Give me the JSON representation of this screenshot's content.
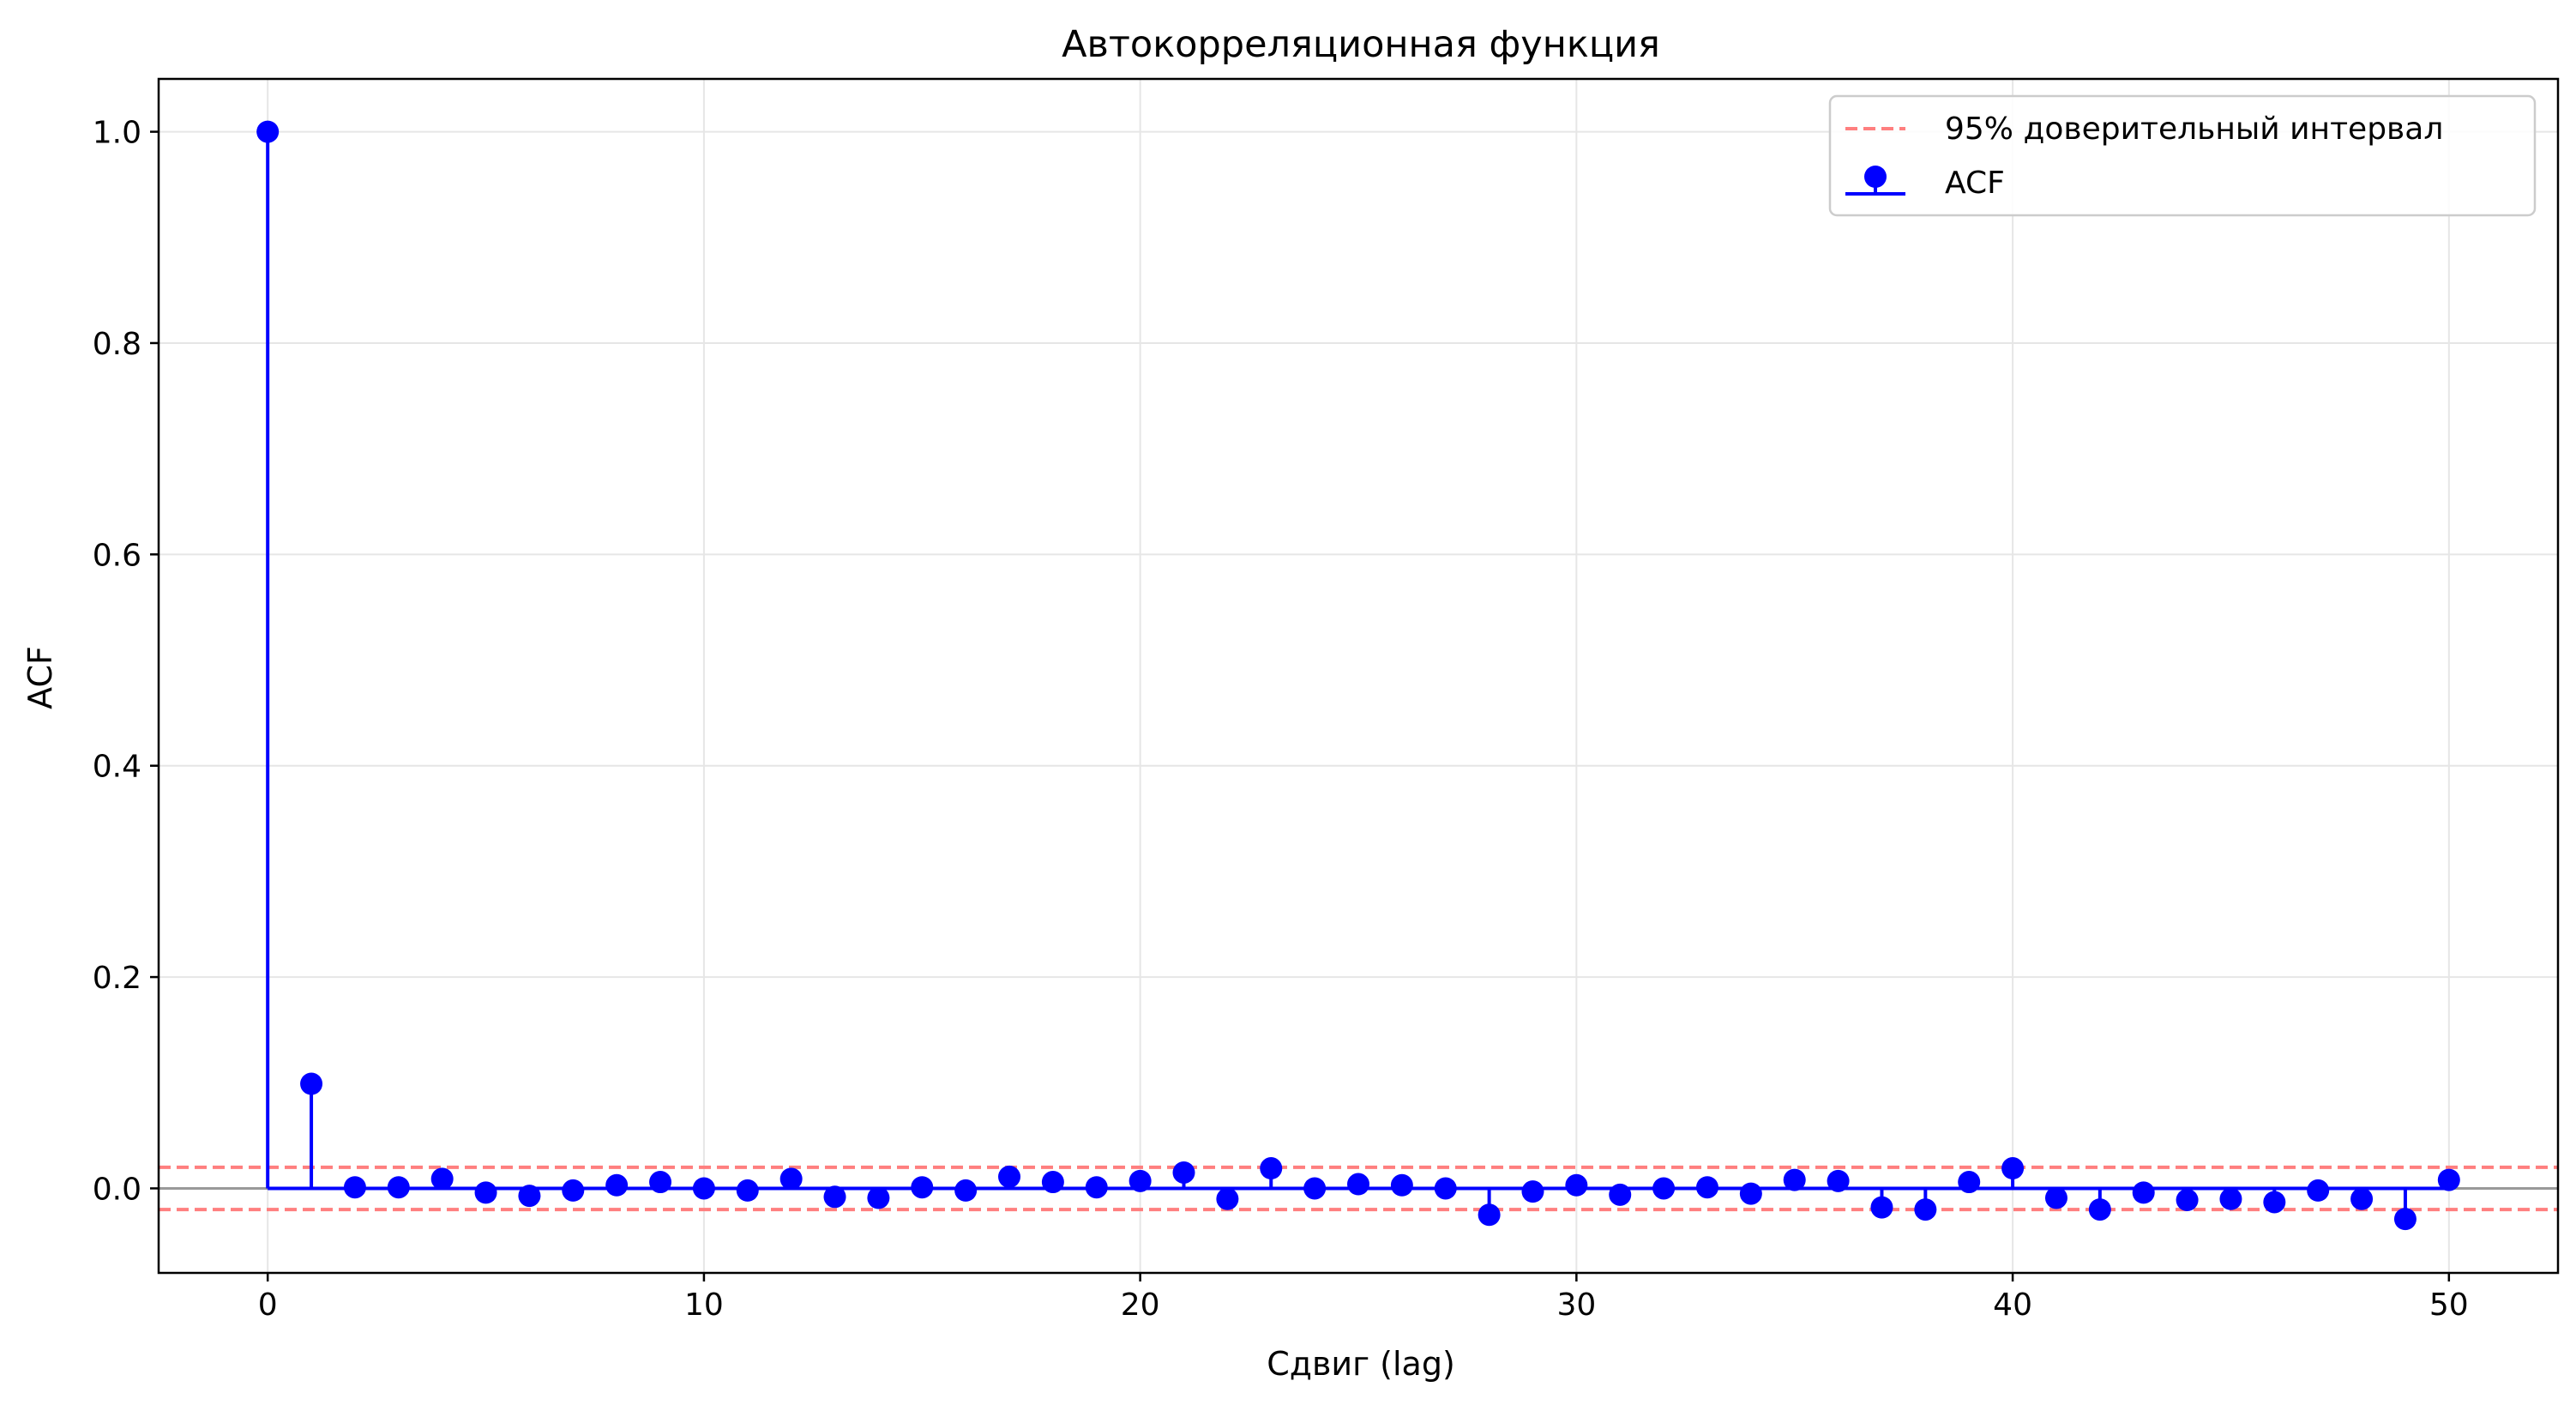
{
  "chart_data": {
    "type": "stem",
    "title": "Автокорреляционная функция",
    "xlabel": "Сдвиг (lag)",
    "ylabel": "ACF",
    "xlim": [
      -2.5,
      52.5
    ],
    "ylim": [
      -0.08,
      1.05
    ],
    "xticks": [
      0,
      10,
      20,
      30,
      40,
      50
    ],
    "xtick_labels": [
      "0",
      "10",
      "20",
      "30",
      "40",
      "50"
    ],
    "yticks": [
      0.0,
      0.2,
      0.4,
      0.6,
      0.8,
      1.0
    ],
    "ytick_labels": [
      "0.0",
      "0.2",
      "0.4",
      "0.6",
      "0.8",
      "1.0"
    ],
    "grid": true,
    "legend_position": "top-right",
    "confidence_interval": {
      "label": "95% доверительный интервал",
      "upper": 0.02,
      "lower": -0.02,
      "color": "#ff7f7f"
    },
    "series": [
      {
        "name": "ACF",
        "color": "#0000ff",
        "x": [
          0,
          1,
          2,
          3,
          4,
          5,
          6,
          7,
          8,
          9,
          10,
          11,
          12,
          13,
          14,
          15,
          16,
          17,
          18,
          19,
          20,
          21,
          22,
          23,
          24,
          25,
          26,
          27,
          28,
          29,
          30,
          31,
          32,
          33,
          34,
          35,
          36,
          37,
          38,
          39,
          40,
          41,
          42,
          43,
          44,
          45,
          46,
          47,
          48,
          49,
          50
        ],
        "values": [
          1.0,
          0.099,
          0.001,
          0.001,
          0.009,
          -0.004,
          -0.007,
          -0.002,
          0.003,
          0.006,
          0.0,
          -0.002,
          0.009,
          -0.008,
          -0.009,
          0.001,
          -0.002,
          0.011,
          0.006,
          0.001,
          0.007,
          0.015,
          -0.01,
          0.019,
          0.0,
          0.004,
          0.003,
          0.0,
          -0.025,
          -0.003,
          0.003,
          -0.006,
          0.0,
          0.001,
          -0.005,
          0.008,
          0.007,
          -0.018,
          -0.02,
          0.006,
          0.019,
          -0.009,
          -0.02,
          -0.004,
          -0.011,
          -0.01,
          -0.013,
          -0.002,
          -0.01,
          -0.029,
          0.008
        ]
      }
    ],
    "zero_line_color": "#999999"
  }
}
